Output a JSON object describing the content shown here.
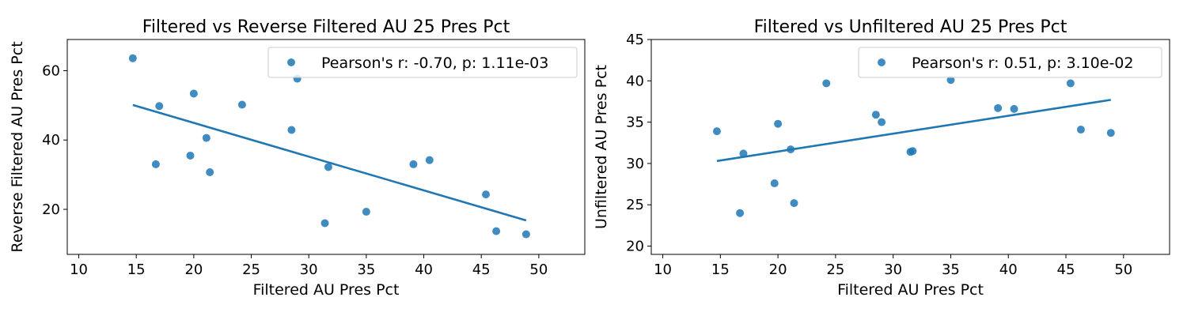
{
  "chart_data": [
    {
      "type": "scatter",
      "title": "Filtered vs Reverse Filtered AU 25 Pres Pct",
      "xlabel": "Filtered AU Pres Pct",
      "ylabel": "Reverse Filtered AU Pres Pct",
      "xlim": [
        9,
        54
      ],
      "ylim": [
        7,
        69
      ],
      "xticks": [
        10,
        15,
        20,
        25,
        30,
        35,
        40,
        45,
        50
      ],
      "yticks": [
        20,
        40,
        60
      ],
      "grid": false,
      "legend_position": "top-right",
      "point_color": "#1f77b4",
      "line_color": "#1f77b4",
      "legend_label": "Pearson's r: -0.70, p: 1.11e-03",
      "points": [
        [
          14.7,
          63.6
        ],
        [
          17.0,
          49.8
        ],
        [
          16.7,
          33.0
        ],
        [
          19.7,
          35.5
        ],
        [
          20.0,
          53.4
        ],
        [
          21.1,
          40.6
        ],
        [
          21.4,
          30.7
        ],
        [
          24.2,
          50.2
        ],
        [
          28.5,
          42.9
        ],
        [
          29.0,
          57.7
        ],
        [
          31.7,
          32.2
        ],
        [
          31.4,
          16.0
        ],
        [
          35.0,
          19.3
        ],
        [
          39.1,
          33.0
        ],
        [
          40.5,
          34.2
        ],
        [
          45.4,
          24.3
        ],
        [
          46.3,
          13.7
        ],
        [
          48.9,
          12.8
        ]
      ],
      "fit_line": [
        [
          14.7,
          50.1
        ],
        [
          48.9,
          16.8
        ]
      ]
    },
    {
      "type": "scatter",
      "title": "Filtered vs Unfiltered AU 25 Pres Pct",
      "xlabel": "Filtered AU Pres Pct",
      "ylabel": "Unfiltered AU Pres Pct",
      "xlim": [
        9,
        54
      ],
      "ylim": [
        19,
        45
      ],
      "xticks": [
        10,
        15,
        20,
        25,
        30,
        35,
        40,
        45,
        50
      ],
      "yticks": [
        20,
        25,
        30,
        35,
        40,
        45
      ],
      "grid": false,
      "legend_position": "top-right",
      "point_color": "#1f77b4",
      "line_color": "#1f77b4",
      "legend_label": "Pearson's r: 0.51, p: 3.10e-02",
      "points": [
        [
          14.7,
          33.9
        ],
        [
          17.0,
          31.2
        ],
        [
          16.7,
          24.0
        ],
        [
          19.7,
          27.6
        ],
        [
          20.0,
          34.8
        ],
        [
          21.1,
          31.7
        ],
        [
          21.4,
          25.2
        ],
        [
          24.2,
          39.7
        ],
        [
          28.5,
          35.9
        ],
        [
          29.0,
          35.0
        ],
        [
          31.5,
          31.4
        ],
        [
          31.7,
          31.5
        ],
        [
          35.0,
          40.1
        ],
        [
          39.1,
          36.7
        ],
        [
          40.5,
          36.6
        ],
        [
          45.4,
          39.7
        ],
        [
          46.3,
          34.1
        ],
        [
          48.9,
          33.7
        ]
      ],
      "fit_line": [
        [
          14.7,
          30.3
        ],
        [
          48.9,
          37.7
        ]
      ]
    }
  ]
}
